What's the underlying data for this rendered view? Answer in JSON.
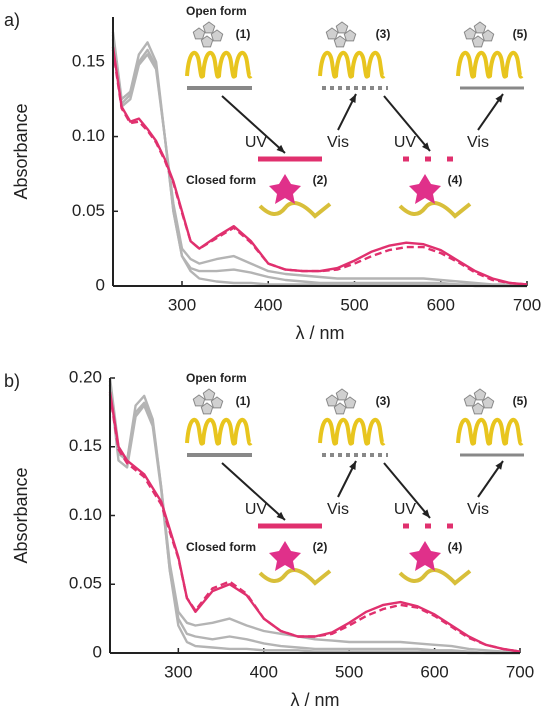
{
  "chart_data": [
    {
      "type": "line",
      "panel_label": "a)",
      "x_label": "λ / nm",
      "y_label": "Absorbance",
      "xlim": [
        220,
        700
      ],
      "xticks": [
        300,
        400,
        500,
        600,
        700
      ],
      "ylim": [
        0,
        0.18
      ],
      "yticks": [
        0,
        0.05,
        {
          "value": 0.1,
          "label": "0.10"
        },
        0.15
      ],
      "x": [
        220,
        230,
        240,
        250,
        260,
        270,
        280,
        290,
        300,
        310,
        320,
        340,
        360,
        380,
        400,
        420,
        440,
        460,
        480,
        500,
        520,
        540,
        560,
        580,
        600,
        620,
        640,
        660,
        680,
        700
      ],
      "series": [
        {
          "color": "#b4b4b4",
          "linestyle": "solid",
          "values": [
            0.17,
            0.125,
            0.13,
            0.155,
            0.163,
            0.15,
            0.1,
            0.05,
            0.02,
            0.01,
            0.005,
            0.003,
            0.002,
            0.002,
            0.001,
            0.001,
            0.001,
            0.001,
            0.001,
            0.001,
            0.001,
            0.001,
            0.001,
            0.001,
            0.001,
            0.001,
            0,
            0,
            0,
            0
          ]
        },
        {
          "color": "#b4b4b4",
          "linestyle": "solid",
          "values": [
            0.168,
            0.122,
            0.128,
            0.15,
            0.158,
            0.147,
            0.1,
            0.055,
            0.025,
            0.018,
            0.015,
            0.018,
            0.02,
            0.015,
            0.01,
            0.008,
            0.007,
            0.006,
            0.005,
            0.005,
            0.005,
            0.005,
            0.005,
            0.005,
            0.004,
            0.003,
            0.002,
            0.001,
            0.001,
            0
          ]
        },
        {
          "color": "#b4b4b4",
          "linestyle": "solid",
          "values": [
            0.165,
            0.12,
            0.125,
            0.148,
            0.155,
            0.145,
            0.1,
            0.05,
            0.02,
            0.012,
            0.01,
            0.01,
            0.011,
            0.009,
            0.006,
            0.004,
            0.003,
            0.002,
            0.002,
            0.002,
            0.002,
            0.002,
            0.002,
            0.002,
            0.002,
            0.001,
            0.001,
            0,
            0,
            0
          ]
        },
        {
          "color": "#e0306e",
          "linestyle": "solid",
          "values": [
            0.16,
            0.12,
            0.11,
            0.112,
            0.105,
            0.097,
            0.085,
            0.07,
            0.05,
            0.03,
            0.025,
            0.033,
            0.04,
            0.03,
            0.015,
            0.011,
            0.01,
            0.01,
            0.012,
            0.017,
            0.023,
            0.027,
            0.029,
            0.028,
            0.024,
            0.017,
            0.01,
            0.005,
            0.002,
            0.001
          ]
        },
        {
          "color": "#e0306e",
          "linestyle": "dashed",
          "values": [
            0.158,
            0.119,
            0.109,
            0.11,
            0.104,
            0.096,
            0.084,
            0.069,
            0.049,
            0.03,
            0.025,
            0.032,
            0.039,
            0.029,
            0.015,
            0.011,
            0.01,
            0.01,
            0.011,
            0.015,
            0.02,
            0.024,
            0.026,
            0.026,
            0.022,
            0.016,
            0.009,
            0.004,
            0.002,
            0.001
          ]
        }
      ],
      "annotations": [
        "Open form",
        "(1)",
        "(3)",
        "(5)",
        "UV",
        "Vis",
        "UV",
        "Vis",
        "Closed form",
        "(2)",
        "(4)"
      ]
    },
    {
      "type": "line",
      "panel_label": "b)",
      "x_label": "λ / nm",
      "y_label": "Absorbance",
      "xlim": [
        220,
        700
      ],
      "xticks": [
        300,
        400,
        500,
        600,
        700
      ],
      "ylim": [
        0,
        0.2
      ],
      "yticks": [
        0,
        0.05,
        {
          "value": 0.1,
          "label": "0.10"
        },
        0.15,
        {
          "value": 0.2,
          "label": "0.20"
        }
      ],
      "x": [
        220,
        230,
        240,
        250,
        260,
        270,
        280,
        290,
        300,
        310,
        320,
        340,
        360,
        380,
        400,
        420,
        440,
        460,
        480,
        500,
        520,
        540,
        560,
        580,
        600,
        620,
        640,
        660,
        680,
        700
      ],
      "series": [
        {
          "color": "#b4b4b4",
          "linestyle": "solid",
          "values": [
            0.2,
            0.15,
            0.14,
            0.18,
            0.187,
            0.17,
            0.12,
            0.06,
            0.02,
            0.008,
            0.005,
            0.004,
            0.003,
            0.003,
            0.002,
            0.002,
            0.002,
            0.001,
            0.001,
            0.001,
            0.001,
            0.001,
            0.001,
            0.001,
            0.001,
            0.001,
            0,
            0,
            0,
            0
          ]
        },
        {
          "color": "#b4b4b4",
          "linestyle": "solid",
          "values": [
            0.198,
            0.145,
            0.14,
            0.175,
            0.182,
            0.168,
            0.12,
            0.065,
            0.03,
            0.022,
            0.02,
            0.022,
            0.025,
            0.02,
            0.016,
            0.014,
            0.012,
            0.01,
            0.009,
            0.008,
            0.008,
            0.008,
            0.008,
            0.007,
            0.006,
            0.005,
            0.003,
            0.002,
            0.001,
            0
          ]
        },
        {
          "color": "#b4b4b4",
          "linestyle": "solid",
          "values": [
            0.195,
            0.14,
            0.135,
            0.172,
            0.18,
            0.165,
            0.118,
            0.06,
            0.025,
            0.014,
            0.012,
            0.01,
            0.012,
            0.01,
            0.007,
            0.005,
            0.004,
            0.003,
            0.003,
            0.003,
            0.003,
            0.003,
            0.003,
            0.003,
            0.002,
            0.002,
            0.001,
            0,
            0,
            0
          ]
        },
        {
          "color": "#e0306e",
          "linestyle": "solid",
          "values": [
            0.19,
            0.15,
            0.14,
            0.135,
            0.13,
            0.12,
            0.11,
            0.09,
            0.07,
            0.04,
            0.03,
            0.045,
            0.05,
            0.042,
            0.025,
            0.016,
            0.012,
            0.012,
            0.015,
            0.022,
            0.03,
            0.035,
            0.037,
            0.034,
            0.028,
            0.02,
            0.012,
            0.006,
            0.003,
            0.001
          ]
        },
        {
          "color": "#e0306e",
          "linestyle": "dashed",
          "values": [
            0.188,
            0.148,
            0.138,
            0.133,
            0.128,
            0.118,
            0.108,
            0.088,
            0.069,
            0.04,
            0.031,
            0.047,
            0.052,
            0.043,
            0.025,
            0.016,
            0.012,
            0.012,
            0.014,
            0.02,
            0.027,
            0.032,
            0.035,
            0.033,
            0.027,
            0.019,
            0.011,
            0.006,
            0.003,
            0.001
          ]
        }
      ],
      "annotations": [
        "Open form",
        "(1)",
        "(3)",
        "(5)",
        "UV",
        "Vis",
        "UV",
        "Vis",
        "Closed form",
        "(2)",
        "(4)"
      ]
    }
  ]
}
